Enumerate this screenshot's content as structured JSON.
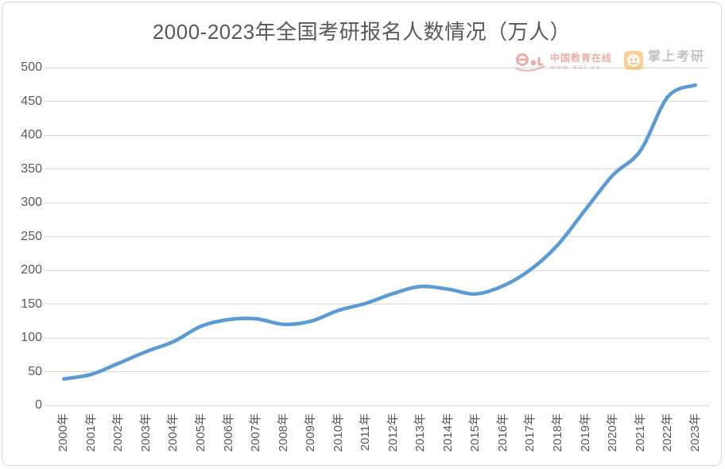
{
  "page": {
    "background": "#ffffff",
    "border_color": "#d9d9d9"
  },
  "watermarks": {
    "eol": {
      "brand": "eol",
      "label": "中国教育在线",
      "url": "www.eol.cn",
      "color": "#d96a6a"
    },
    "kaoyan": {
      "label": "掌上考研",
      "subtext": "·· ··· · ···· ·· ··",
      "color": "#f2a33c"
    }
  },
  "chart_data": {
    "type": "line",
    "title": "2000-2023年全国考研报名人数情况（万人）",
    "categories": [
      "2000年",
      "2001年",
      "2002年",
      "2003年",
      "2004年",
      "2005年",
      "2006年",
      "2007年",
      "2008年",
      "2009年",
      "2010年",
      "2011年",
      "2012年",
      "2013年",
      "2014年",
      "2015年",
      "2016年",
      "2017年",
      "2018年",
      "2019年",
      "2020年",
      "2021年",
      "2022年",
      "2023年"
    ],
    "series": [
      {
        "values": [
          39.2,
          46,
          62.4,
          79.7,
          94.5,
          117.2,
          127.1,
          128.2,
          120,
          124.6,
          140.6,
          151.1,
          165.6,
          176,
          172,
          164.9,
          177,
          201,
          238,
          290,
          341,
          377,
          457,
          474
        ],
        "color": "#5b9bd5",
        "smooth": true,
        "line_width": 4.5
      }
    ],
    "xlabel": "",
    "ylabel": "",
    "ylim": [
      0,
      500
    ],
    "ytick_step": 50,
    "ytick_labels": [
      "0",
      "50",
      "100",
      "150",
      "200",
      "250",
      "300",
      "350",
      "400",
      "450",
      "500"
    ],
    "grid": true,
    "gridline_color": "#d9d9d9",
    "label_color": "#595959",
    "legend_position": "none"
  }
}
